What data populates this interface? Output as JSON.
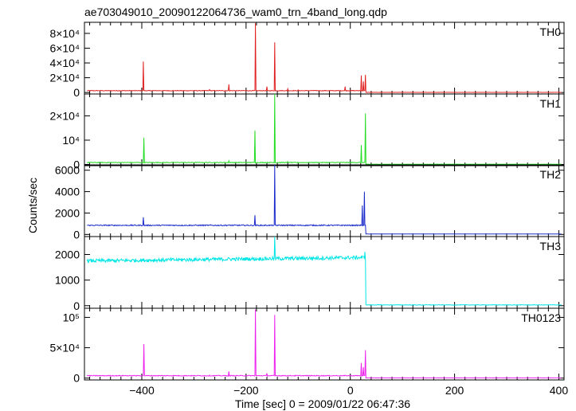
{
  "chart_data": {
    "type": "line",
    "title": "ae703049010_20090122064736_wam0_trn_4band_long.qdp",
    "xlabel": "Time [sec] 0 = 2009/01/22 06:47:36",
    "ylabel": "Counts/sec",
    "xlim": [
      -510,
      410
    ],
    "xticks": [
      {
        "value": -400,
        "label": "−400"
      },
      {
        "value": -200,
        "label": "−200"
      },
      {
        "value": 0,
        "label": "0"
      },
      {
        "value": 200,
        "label": "200"
      },
      {
        "value": 400,
        "label": "400"
      }
    ],
    "grid": false,
    "panels": [
      {
        "name": "TH0",
        "color": "#e02020",
        "ylim": [
          -2000,
          95000
        ],
        "yticks": [
          {
            "value": 0,
            "label": "0"
          },
          {
            "value": 20000,
            "label": "2×10⁴"
          },
          {
            "value": 40000,
            "label": "4×10⁴"
          },
          {
            "value": 60000,
            "label": "6×10⁴"
          },
          {
            "value": 80000,
            "label": "8×10⁴"
          }
        ],
        "baseline": 2500,
        "noise": 400,
        "post_level": 200,
        "spikes": [
          [
            -397,
            42000
          ],
          [
            -270,
            4000
          ],
          [
            -233,
            11000
          ],
          [
            -182,
            94000
          ],
          [
            -145,
            68000
          ],
          [
            -160,
            8000
          ],
          [
            -120,
            5000
          ],
          [
            -100,
            3500
          ],
          [
            -70,
            3000
          ],
          [
            -40,
            2500
          ],
          [
            -10,
            8000
          ],
          [
            21,
            23000
          ],
          [
            25,
            15000
          ],
          [
            29,
            24000
          ]
        ]
      },
      {
        "name": "TH1",
        "color": "#22dd22",
        "ylim": [
          -500,
          29000
        ],
        "yticks": [
          {
            "value": 0,
            "label": "0"
          },
          {
            "value": 10000,
            "label": "10⁴"
          },
          {
            "value": 20000,
            "label": "2×10⁴"
          }
        ],
        "baseline": 800,
        "noise": 150,
        "post_level": 100,
        "spikes": [
          [
            -396,
            11000
          ],
          [
            -233,
            1500
          ],
          [
            -183,
            14000
          ],
          [
            -145,
            29000
          ],
          [
            -120,
            1200
          ],
          [
            21,
            8000
          ],
          [
            29,
            21000
          ]
        ]
      },
      {
        "name": "TH2",
        "color": "#1a2bcc",
        "ylim": [
          -200,
          6500
        ],
        "yticks": [
          {
            "value": 0,
            "label": "0"
          },
          {
            "value": 2000,
            "label": "2000"
          },
          {
            "value": 4000,
            "label": "4000"
          },
          {
            "value": 6000,
            "label": "6000"
          }
        ],
        "baseline": 850,
        "noise": 50,
        "post_level": 40,
        "spikes": [
          [
            -397,
            1600
          ],
          [
            -183,
            1800
          ],
          [
            -145,
            6500
          ],
          [
            23,
            2700
          ],
          [
            27,
            4000
          ]
        ]
      },
      {
        "name": "TH3",
        "color": "#00e5e5",
        "ylim": [
          -100,
          2700
        ],
        "yticks": [
          {
            "value": 0,
            "label": "0"
          },
          {
            "value": 1000,
            "label": "1000"
          },
          {
            "value": 2000,
            "label": "2000"
          }
        ],
        "baseline": 1750,
        "slope": 0.25,
        "noise": 70,
        "post_level": 30,
        "spikes": [
          [
            -145,
            2700
          ],
          [
            28,
            2100
          ]
        ]
      },
      {
        "name": "TH0123",
        "color": "#ee22ee",
        "ylim": [
          -3000,
          115000
        ],
        "yticks": [
          {
            "value": 0,
            "label": "0"
          },
          {
            "value": 50000,
            "label": "5×10⁴"
          },
          {
            "value": 100000,
            "label": "10⁵"
          }
        ],
        "baseline": 4000,
        "noise": 600,
        "post_level": 400,
        "spikes": [
          [
            -396,
            56000
          ],
          [
            -233,
            11000
          ],
          [
            -182,
            113000
          ],
          [
            -145,
            104000
          ],
          [
            -160,
            8000
          ],
          [
            -270,
            5000
          ],
          [
            21,
            25000
          ],
          [
            25,
            18000
          ],
          [
            29,
            46000
          ]
        ]
      }
    ]
  }
}
